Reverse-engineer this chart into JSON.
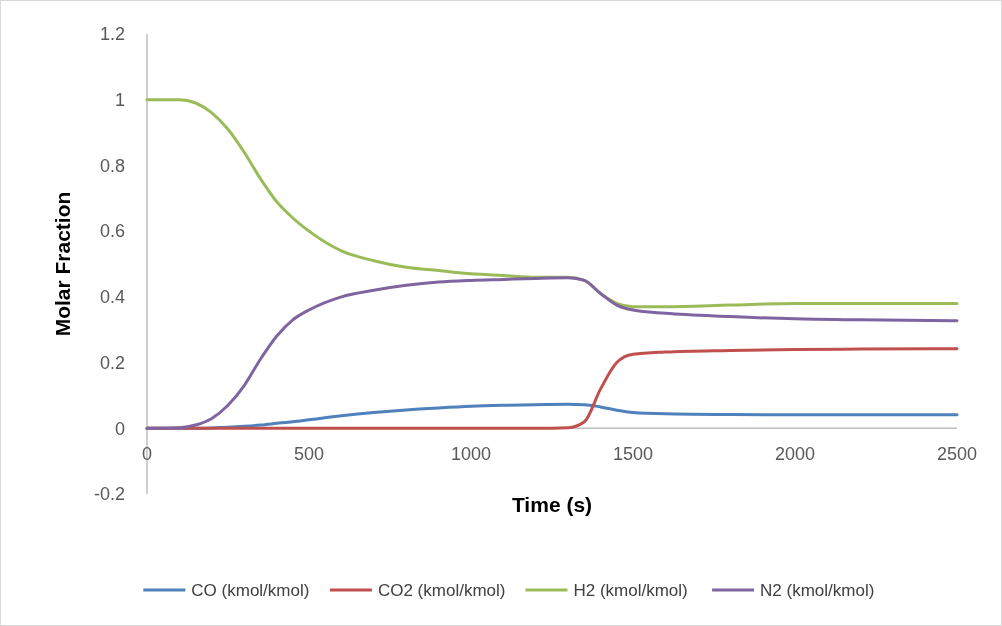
{
  "chart_data": {
    "type": "line",
    "xlabel": "Time (s)",
    "ylabel": "Molar Fraction",
    "x": [
      0,
      100,
      150,
      200,
      250,
      300,
      350,
      400,
      450,
      500,
      600,
      700,
      800,
      900,
      1000,
      1100,
      1200,
      1300,
      1350,
      1400,
      1450,
      1500,
      1600,
      1800,
      2000,
      2200,
      2500
    ],
    "series": [
      {
        "name": "CO (kmol/kmol)",
        "color": "#4f81bd",
        "values": [
          0,
          0,
          0,
          0.001,
          0.003,
          0.006,
          0.01,
          0.015,
          0.02,
          0.026,
          0.038,
          0.048,
          0.056,
          0.062,
          0.067,
          0.07,
          0.072,
          0.073,
          0.072,
          0.065,
          0.055,
          0.048,
          0.044,
          0.042,
          0.041,
          0.041,
          0.041
        ]
      },
      {
        "name": "CO2 (kmol/kmol)",
        "color": "#c0504d",
        "values": [
          0,
          0,
          0,
          0,
          0,
          0,
          0,
          0,
          0,
          0,
          0,
          0,
          0,
          0,
          0,
          0,
          0,
          0.002,
          0.02,
          0.12,
          0.2,
          0.225,
          0.232,
          0.237,
          0.24,
          0.241,
          0.242
        ]
      },
      {
        "name": "H2 (kmol/kmol)",
        "color": "#9bbb59",
        "values": [
          1,
          1,
          0.99,
          0.96,
          0.91,
          0.84,
          0.76,
          0.69,
          0.64,
          0.6,
          0.54,
          0.51,
          0.49,
          0.48,
          0.47,
          0.465,
          0.46,
          0.46,
          0.45,
          0.41,
          0.38,
          0.37,
          0.37,
          0.375,
          0.38,
          0.38,
          0.38
        ]
      },
      {
        "name": "N2 (kmol/kmol)",
        "color": "#8064a2",
        "values": [
          0,
          0.002,
          0.01,
          0.03,
          0.07,
          0.13,
          0.21,
          0.28,
          0.33,
          0.36,
          0.4,
          0.42,
          0.435,
          0.445,
          0.45,
          0.453,
          0.456,
          0.458,
          0.45,
          0.41,
          0.375,
          0.36,
          0.35,
          0.34,
          0.333,
          0.33,
          0.327
        ]
      }
    ],
    "xlim": [
      0,
      2500
    ],
    "xticks": [
      0,
      500,
      1000,
      1500,
      2000,
      2500
    ],
    "ylim": [
      -0.2,
      1.2
    ],
    "yticks": [
      -0.2,
      0,
      0.2,
      0.4,
      0.6,
      0.8,
      1,
      1.2
    ],
    "grid": false,
    "legend": "bottom",
    "marker": "none",
    "line_style": "solid"
  }
}
